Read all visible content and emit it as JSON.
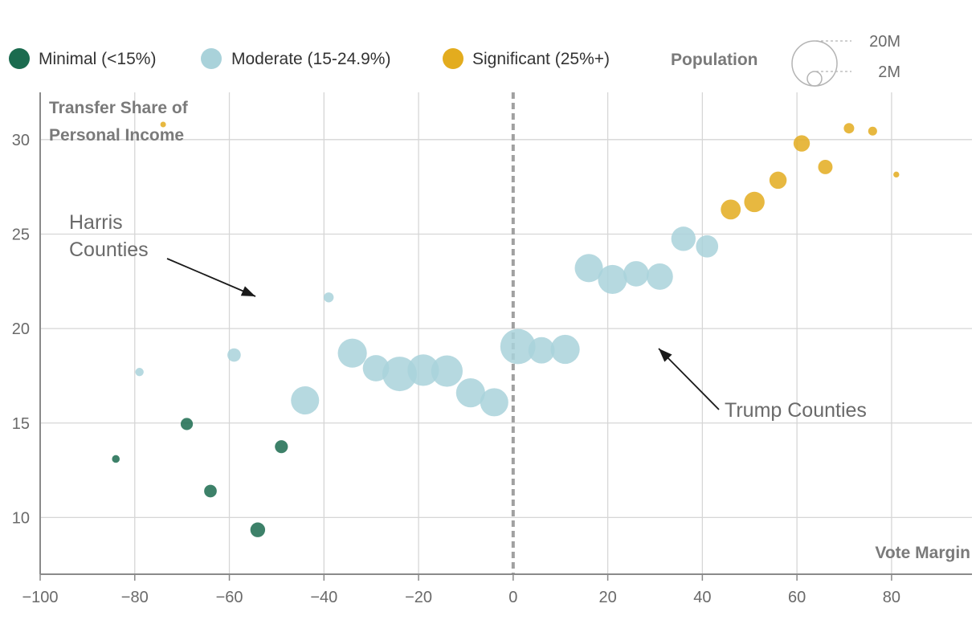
{
  "colors": {
    "minimal": "#1b6b4f",
    "moderate": "#a9d2da",
    "significant": "#e3ac1e",
    "grid": "#d6d6d6",
    "axis": "#8a8a8a",
    "zero_line": "#a0a0a0",
    "arrow": "#1a1a1a"
  },
  "legend": {
    "items": [
      {
        "key": "minimal",
        "label": "Minimal (<15%)"
      },
      {
        "key": "moderate",
        "label": "Moderate (15-24.9%)"
      },
      {
        "key": "significant",
        "label": "Significant (25%+)"
      }
    ],
    "population": {
      "title": "Population",
      "large": "20M",
      "small": "2M"
    }
  },
  "chart_data": {
    "type": "scatter",
    "title": "",
    "xlabel": "Vote Margin",
    "ylabel": "Transfer Share of Personal Income",
    "ylabel_lines": [
      "Transfer Share of",
      "Personal Income"
    ],
    "xlim": [
      -100,
      97
    ],
    "ylim": [
      7,
      32.5
    ],
    "xticks": [
      -100,
      -80,
      -60,
      -40,
      -20,
      0,
      20,
      40,
      60,
      80
    ],
    "xtick_labels": [
      "−100",
      "−80",
      "−60",
      "−40",
      "−20",
      "0",
      "20",
      "40",
      "60",
      "80"
    ],
    "yticks": [
      10,
      15,
      20,
      25,
      30
    ],
    "ytick_labels": [
      "10",
      "15",
      "20",
      "25",
      "30"
    ],
    "grid": true,
    "reference_line": {
      "x": 0,
      "style": "dashed"
    },
    "annotations": [
      {
        "lines": [
          "Harris",
          "Counties"
        ]
      },
      {
        "lines": [
          "Trump Counties"
        ]
      }
    ],
    "series": [
      {
        "name": "Minimal (<15%)",
        "key": "minimal",
        "points": [
          {
            "x": -84,
            "y": 13.1,
            "pop": 0.6
          },
          {
            "x": -69,
            "y": 14.95,
            "pop": 1.5
          },
          {
            "x": -64,
            "y": 11.4,
            "pop": 1.6
          },
          {
            "x": -54,
            "y": 9.35,
            "pop": 2.2
          },
          {
            "x": -49,
            "y": 13.75,
            "pop": 1.7
          }
        ]
      },
      {
        "name": "Moderate (15-24.9%)",
        "key": "moderate",
        "points": [
          {
            "x": -79,
            "y": 17.7,
            "pop": 0.7
          },
          {
            "x": -59,
            "y": 18.6,
            "pop": 1.8
          },
          {
            "x": -39,
            "y": 21.65,
            "pop": 1.0
          },
          {
            "x": -44,
            "y": 16.2,
            "pop": 8.0
          },
          {
            "x": -34,
            "y": 18.7,
            "pop": 8.5
          },
          {
            "x": -29,
            "y": 17.9,
            "pop": 7.0
          },
          {
            "x": -24,
            "y": 17.6,
            "pop": 12.0
          },
          {
            "x": -19,
            "y": 17.8,
            "pop": 10.0
          },
          {
            "x": -14,
            "y": 17.75,
            "pop": 10.0
          },
          {
            "x": -9,
            "y": 16.6,
            "pop": 8.5
          },
          {
            "x": -4,
            "y": 16.1,
            "pop": 8.0
          },
          {
            "x": 1,
            "y": 19.05,
            "pop": 12.5
          },
          {
            "x": 6,
            "y": 18.85,
            "pop": 7.0
          },
          {
            "x": 11,
            "y": 18.9,
            "pop": 8.5
          },
          {
            "x": 16,
            "y": 23.2,
            "pop": 8.0
          },
          {
            "x": 21,
            "y": 22.6,
            "pop": 8.5
          },
          {
            "x": 26,
            "y": 22.9,
            "pop": 6.5
          },
          {
            "x": 31,
            "y": 22.75,
            "pop": 7.0
          },
          {
            "x": 36,
            "y": 24.75,
            "pop": 6.0
          },
          {
            "x": 41,
            "y": 24.35,
            "pop": 5.0
          }
        ]
      },
      {
        "name": "Significant (25%+)",
        "key": "significant",
        "points": [
          {
            "x": -74,
            "y": 30.8,
            "pop": 0.03
          },
          {
            "x": 46,
            "y": 26.3,
            "pop": 4.0
          },
          {
            "x": 51,
            "y": 26.7,
            "pop": 4.2
          },
          {
            "x": 56,
            "y": 27.85,
            "pop": 3.0
          },
          {
            "x": 61,
            "y": 29.8,
            "pop": 2.7
          },
          {
            "x": 66,
            "y": 28.55,
            "pop": 2.1
          },
          {
            "x": 71,
            "y": 30.6,
            "pop": 1.1
          },
          {
            "x": 76,
            "y": 30.45,
            "pop": 0.8
          },
          {
            "x": 81,
            "y": 28.15,
            "pop": 0.35
          }
        ]
      }
    ]
  }
}
